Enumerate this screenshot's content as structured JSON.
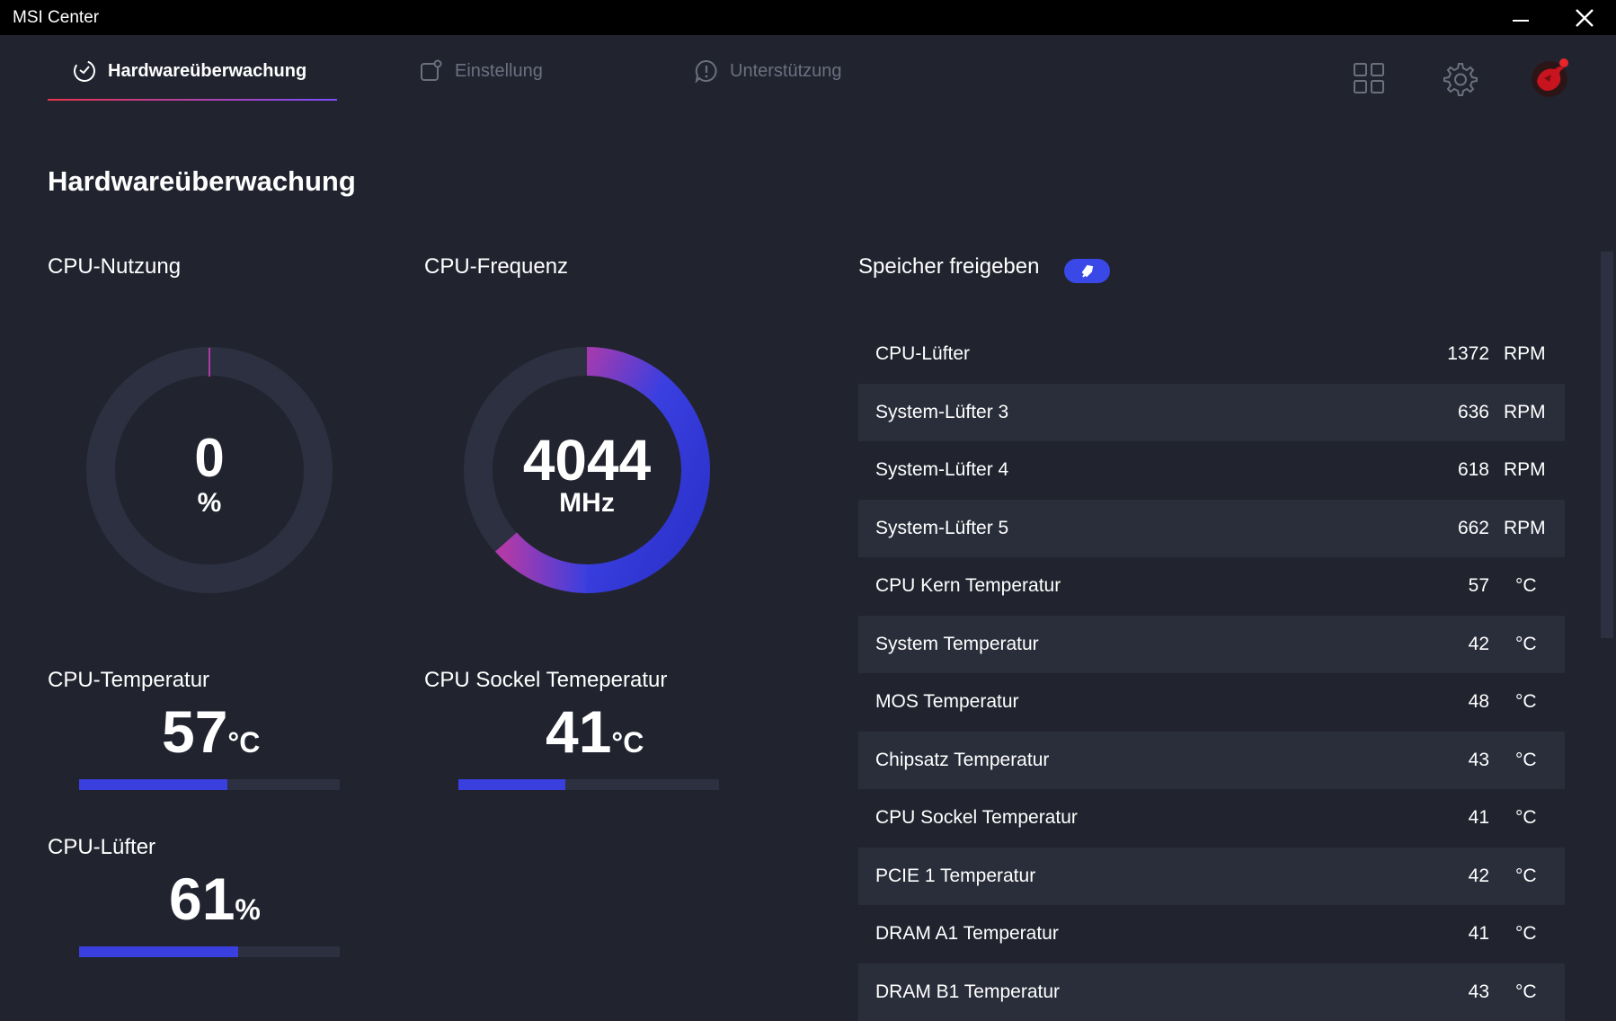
{
  "window": {
    "title": "MSI Center"
  },
  "nav": {
    "tabs": [
      {
        "label": "Hardwareüberwachung",
        "active": true
      },
      {
        "label": "Einstellung",
        "active": false
      },
      {
        "label": "Unterstützung",
        "active": false
      }
    ]
  },
  "page": {
    "title": "Hardwareüberwachung"
  },
  "cpu_usage": {
    "label": "CPU-Nutzung",
    "value": "0",
    "unit": "%",
    "fraction": 0.0
  },
  "cpu_freq": {
    "label": "CPU-Frequenz",
    "value": "4044",
    "unit": "MHz",
    "fraction": 0.63
  },
  "cpu_temp": {
    "label": "CPU-Temperatur",
    "value": "57",
    "unit": "°C",
    "bar_fraction": 0.57
  },
  "socket_temp": {
    "label": "CPU Sockel Temeperatur",
    "value": "41",
    "unit": "°C",
    "bar_fraction": 0.41
  },
  "cpu_fan": {
    "label": "CPU-Lüfter",
    "value": "61",
    "unit": "%",
    "bar_fraction": 0.61
  },
  "memory": {
    "label": "Speicher freigeben"
  },
  "sensors": [
    {
      "name": "CPU-Lüfter",
      "value": "1372",
      "unit": "RPM"
    },
    {
      "name": "System-Lüfter 3",
      "value": "636",
      "unit": "RPM"
    },
    {
      "name": "System-Lüfter 4",
      "value": "618",
      "unit": "RPM"
    },
    {
      "name": "System-Lüfter 5",
      "value": "662",
      "unit": "RPM"
    },
    {
      "name": "CPU Kern Temperatur",
      "value": "57",
      "unit": "°C"
    },
    {
      "name": "System Temperatur",
      "value": "42",
      "unit": "°C"
    },
    {
      "name": "MOS Temperatur",
      "value": "48",
      "unit": "°C"
    },
    {
      "name": "Chipsatz Temperatur",
      "value": "43",
      "unit": "°C"
    },
    {
      "name": "CPU Sockel Temperatur",
      "value": "41",
      "unit": "°C"
    },
    {
      "name": "PCIE 1 Temperatur",
      "value": "42",
      "unit": "°C"
    },
    {
      "name": "DRAM A1 Temperatur",
      "value": "41",
      "unit": "°C"
    },
    {
      "name": "DRAM B1 Temperatur",
      "value": "43",
      "unit": "°C"
    }
  ],
  "colors": {
    "background": "#21242f",
    "accent_blue": "#3a3fe0",
    "accent_magenta": "#b03aa8",
    "row_shade": "#2a2e3b"
  },
  "icons": {
    "tab_hw": "gauge-icon",
    "tab_settings": "settings-square-icon",
    "tab_support": "alert-bubble-icon",
    "grid": "grid-icon",
    "gear": "gear-icon",
    "avatar": "msi-dragon-icon",
    "refresh": "rocket-icon"
  }
}
